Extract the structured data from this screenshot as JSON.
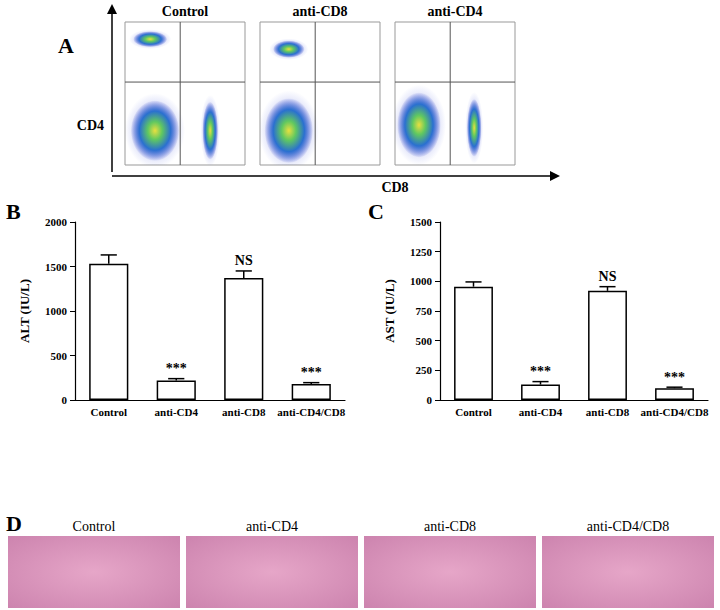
{
  "chart_data": [
    {
      "type": "scatter",
      "panel": "A",
      "x_label": "CD8",
      "y_label": "CD4",
      "xlim": [
        0,
        100
      ],
      "ylim": [
        0,
        100
      ],
      "tick_labels": false,
      "grid": false,
      "quadrant": {
        "x": 46,
        "y": 58
      },
      "plots": [
        {
          "title": "Control",
          "populations": {
            "x": [
              21,
              25,
              71
            ],
            "y": [
              88,
              24,
              24
            ],
            "widths": [
              28,
              40,
              13
            ],
            "heights": [
              11,
              42,
              40
            ]
          }
        },
        {
          "title": "anti-CD8",
          "populations": {
            "x": [
              24,
              24
            ],
            "y": [
              81,
              24
            ],
            "widths": [
              26,
              40
            ],
            "heights": [
              12,
              45
            ]
          }
        },
        {
          "title": "anti-CD4",
          "populations": {
            "x": [
              20,
              66
            ],
            "y": [
              28,
              26
            ],
            "widths": [
              36,
              12
            ],
            "heights": [
              45,
              40
            ]
          }
        }
      ]
    },
    {
      "type": "bar",
      "panel": "B",
      "y_label": "ALT (IU/L)",
      "categories": [
        "Control",
        "anti-CD4",
        "anti-CD8",
        "anti-CD4/CD8"
      ],
      "values": [
        1530,
        220,
        1370,
        180
      ],
      "errors": [
        100,
        20,
        80,
        15
      ],
      "annotations": [
        null,
        "***",
        "NS",
        "***"
      ],
      "ylim": [
        0,
        2000
      ],
      "yticks": [
        0,
        500,
        1000,
        1500,
        2000
      ],
      "color": "#ffffff",
      "grid": false
    },
    {
      "type": "bar",
      "panel": "C",
      "y_label": "AST (IU/L)",
      "categories": [
        "Control",
        "anti-CD4",
        "anti-CD8",
        "anti-CD4/CD8"
      ],
      "values": [
        955,
        130,
        920,
        100
      ],
      "errors": [
        40,
        25,
        35,
        8
      ],
      "annotations": [
        null,
        "***",
        "NS",
        "***"
      ],
      "ylim": [
        0,
        1500
      ],
      "yticks": [
        0,
        250,
        500,
        750,
        1000,
        1250,
        1500
      ],
      "color": "#ffffff",
      "grid": false
    }
  ],
  "histology": {
    "panel": "D",
    "titles": [
      "Control",
      "anti-CD4",
      "anti-CD8",
      "anti-CD4/CD8"
    ]
  }
}
